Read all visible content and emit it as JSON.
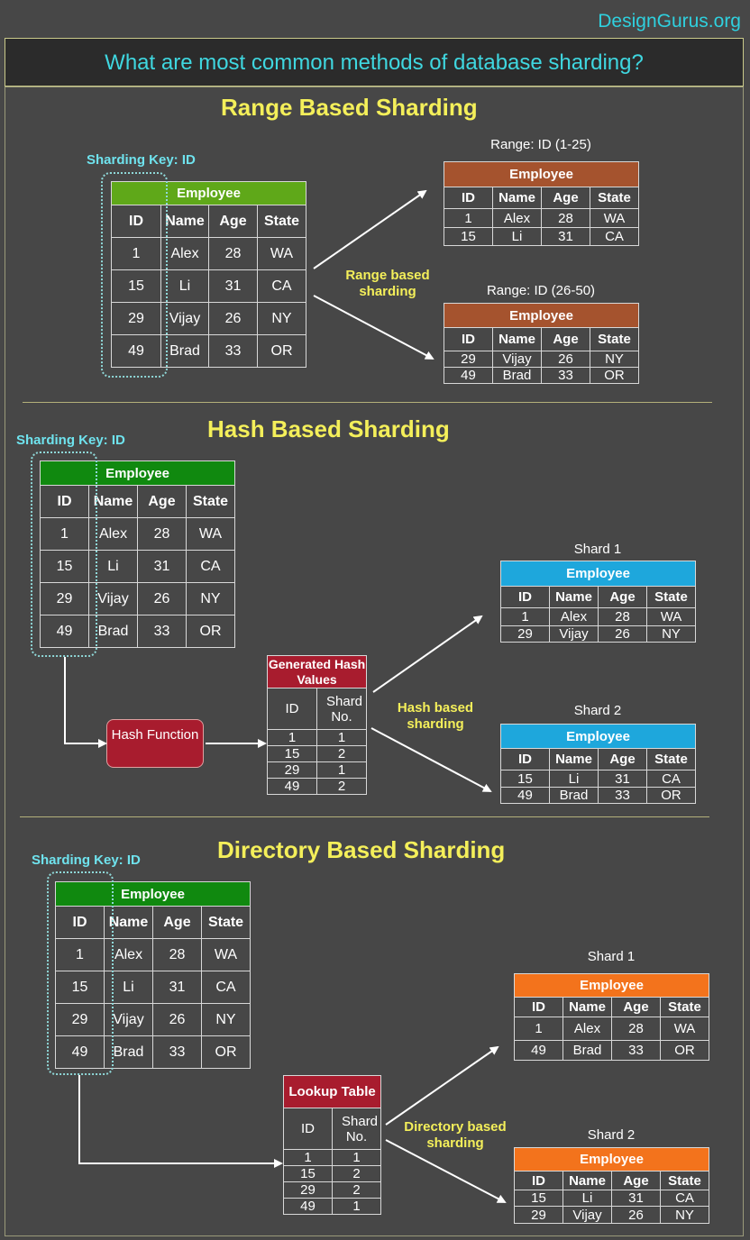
{
  "brand": "DesignGurus.org",
  "main_title": "What are most common methods of database sharding?",
  "key_label": "Sharding Key: ID",
  "employee_columns": [
    "ID",
    "Name",
    "Age",
    "State"
  ],
  "employee_rows": [
    [
      "1",
      "Alex",
      "28",
      "WA"
    ],
    [
      "15",
      "Li",
      "31",
      "CA"
    ],
    [
      "29",
      "Vijay",
      "26",
      "NY"
    ],
    [
      "49",
      "Brad",
      "33",
      "OR"
    ]
  ],
  "table_name": "Employee",
  "range": {
    "title": "Range Based Sharding",
    "caption": "Range based sharding",
    "shard1": {
      "label": "Range: ID (1-25)",
      "rows": [
        [
          "1",
          "Alex",
          "28",
          "WA"
        ],
        [
          "15",
          "Li",
          "31",
          "CA"
        ]
      ]
    },
    "shard2": {
      "label": "Range: ID (26-50)",
      "rows": [
        [
          "29",
          "Vijay",
          "26",
          "NY"
        ],
        [
          "49",
          "Brad",
          "33",
          "OR"
        ]
      ]
    }
  },
  "hash": {
    "title": "Hash Based Sharding",
    "function_label": "Hash Function",
    "table_title": "Generated Hash Values",
    "columns": [
      "ID",
      "Shard No."
    ],
    "rows": [
      [
        "1",
        "1"
      ],
      [
        "15",
        "2"
      ],
      [
        "29",
        "1"
      ],
      [
        "49",
        "2"
      ]
    ],
    "caption": "Hash based sharding",
    "shard1": {
      "label": "Shard 1",
      "rows": [
        [
          "1",
          "Alex",
          "28",
          "WA"
        ],
        [
          "29",
          "Vijay",
          "26",
          "NY"
        ]
      ]
    },
    "shard2": {
      "label": "Shard 2",
      "rows": [
        [
          "15",
          "Li",
          "31",
          "CA"
        ],
        [
          "49",
          "Brad",
          "33",
          "OR"
        ]
      ]
    }
  },
  "directory": {
    "title": "Directory Based Sharding",
    "table_title": "Lookup Table",
    "columns": [
      "ID",
      "Shard No."
    ],
    "rows": [
      [
        "1",
        "1"
      ],
      [
        "15",
        "2"
      ],
      [
        "29",
        "2"
      ],
      [
        "49",
        "1"
      ]
    ],
    "caption": "Directory based sharding",
    "shard1": {
      "label": "Shard 1",
      "rows": [
        [
          "1",
          "Alex",
          "28",
          "WA"
        ],
        [
          "49",
          "Brad",
          "33",
          "OR"
        ]
      ]
    },
    "shard2": {
      "label": "Shard 2",
      "rows": [
        [
          "15",
          "Li",
          "31",
          "CA"
        ],
        [
          "29",
          "Vijay",
          "26",
          "NY"
        ]
      ]
    }
  },
  "colors": {
    "green_light": "#5fa819",
    "green": "#10890f",
    "brown": "#a5532e",
    "blue": "#1ea7dc",
    "orange": "#f3731c",
    "red": "#a81c2e",
    "title_yellow": "#f4ef5a",
    "cyan": "#3fd7e0"
  }
}
